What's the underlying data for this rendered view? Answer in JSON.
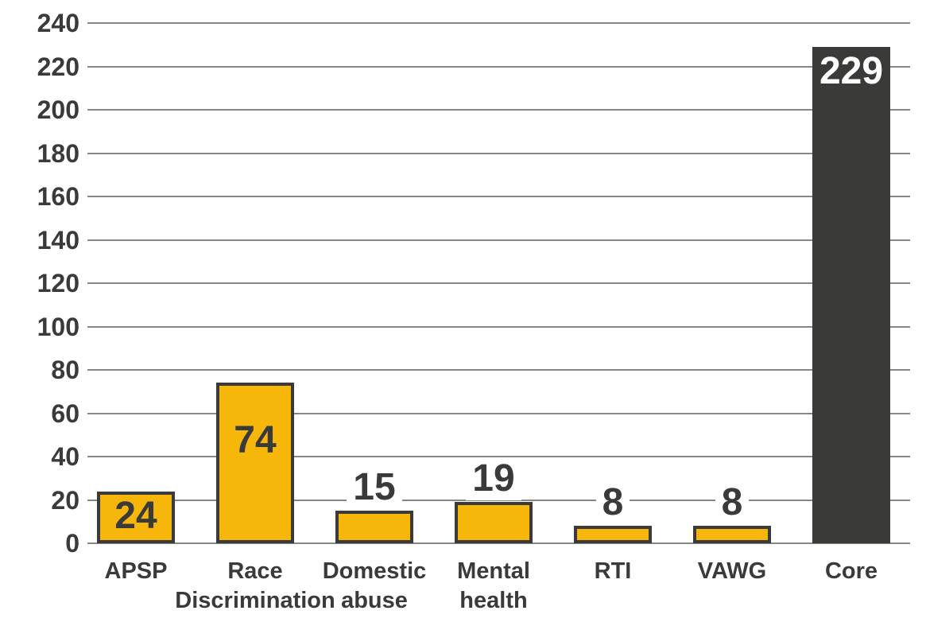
{
  "chart_data": {
    "type": "bar",
    "title": "",
    "xlabel": "",
    "ylabel": "",
    "categories": [
      "APSP",
      "Race Discrimination",
      "Domestic abuse",
      "Mental health",
      "RTI",
      "VAWG",
      "Core"
    ],
    "category_label_lines": [
      [
        "APSP"
      ],
      [
        "Race",
        "Discrimination"
      ],
      [
        "Domestic",
        "abuse"
      ],
      [
        "Mental",
        "health"
      ],
      [
        "RTI"
      ],
      [
        "VAWG"
      ],
      [
        "Core"
      ]
    ],
    "values": [
      24,
      74,
      15,
      19,
      8,
      8,
      229
    ],
    "value_labels": [
      "24",
      "74",
      "15",
      "19",
      "8",
      "8",
      "229"
    ],
    "value_label_placement": [
      "inside",
      "inside",
      "above",
      "above",
      "above",
      "above",
      "inside"
    ],
    "bar_colors": [
      "#F7B60A",
      "#F7B60A",
      "#F7B60A",
      "#F7B60A",
      "#F7B60A",
      "#F7B60A",
      "#3A3A38"
    ],
    "bar_has_border": [
      true,
      true,
      true,
      true,
      true,
      true,
      false
    ],
    "value_label_colors": [
      "#3A3A38",
      "#3A3A38",
      "#3A3A38",
      "#3A3A38",
      "#3A3A38",
      "#3A3A38",
      "#FFFFFF"
    ],
    "ylim": [
      0,
      240
    ],
    "yticks": [
      0,
      20,
      40,
      60,
      80,
      100,
      120,
      140,
      160,
      180,
      200,
      220,
      240
    ],
    "grid": true,
    "legend": false,
    "colors": {
      "background": "#FFFFFF",
      "bar_fill_yellow": "#F7B60A",
      "bar_fill_dark": "#3A3A38",
      "bar_border": "#3A3A38",
      "grid_line": "#878787",
      "axis_text": "#3A3A38",
      "value_text_dark": "#3A3A38",
      "value_text_light": "#FFFFFF"
    }
  }
}
